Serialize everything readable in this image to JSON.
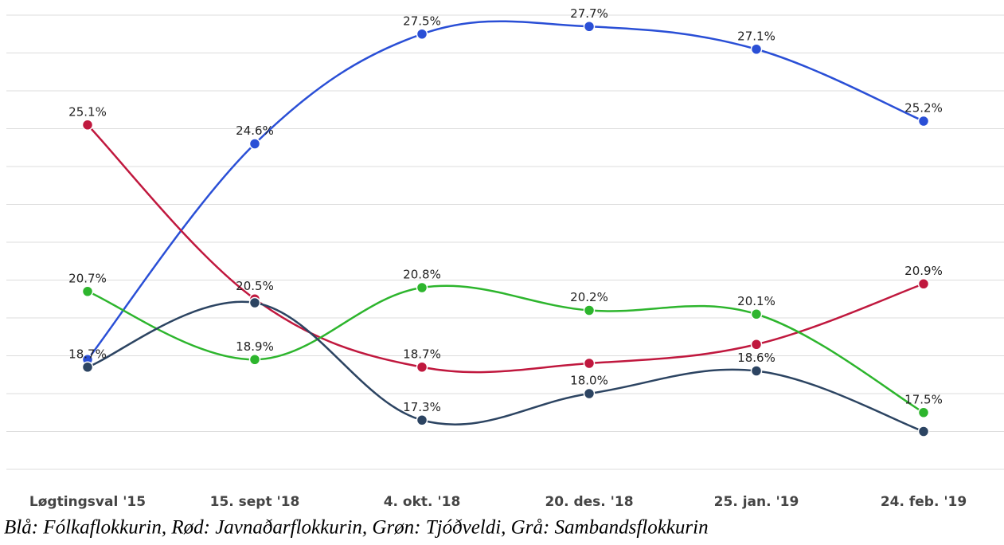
{
  "chart_data": {
    "type": "line",
    "categories": [
      "Løgtingsval '15",
      "15. sept '18",
      "4. okt. '18",
      "20. des. '18",
      "25. jan. '19",
      "24. feb. '19"
    ],
    "series": [
      {
        "color": "#2a4fd6",
        "values": [
          18.9,
          24.6,
          27.5,
          27.7,
          27.1,
          25.2
        ],
        "value_labels": [
          null,
          "24.6%",
          "27.5%",
          "27.7%",
          "27.1%",
          "25.2%"
        ]
      },
      {
        "color": "#c0183e",
        "values": [
          25.1,
          20.5,
          18.7,
          18.8,
          19.3,
          20.9
        ],
        "value_labels": [
          "25.1%",
          "20.5%",
          "18.7%",
          null,
          null,
          "20.9%"
        ]
      },
      {
        "color": "#2db52d",
        "values": [
          20.7,
          18.9,
          20.8,
          20.2,
          20.1,
          17.5
        ],
        "value_labels": [
          "20.7%",
          "18.9%",
          "20.8%",
          "20.2%",
          "20.1%",
          "17.5%"
        ]
      },
      {
        "color": "#2c4462",
        "values": [
          18.7,
          20.4,
          17.3,
          18.0,
          18.6,
          17.0
        ],
        "value_labels": [
          "18.7%",
          null,
          "17.3%",
          "18.0%",
          "18.6%",
          null
        ]
      }
    ],
    "ylim": [
      16,
      28
    ],
    "yticks": [
      16,
      17,
      18,
      19,
      20,
      21,
      22,
      23,
      24,
      25,
      26,
      27,
      28
    ],
    "grid": true,
    "caption": "Blå: Fólkaflokkurin, Rød: Javnaðarflokkurin, Grøn: Tjóðveldi, Grå: Sambandsflokkurin"
  }
}
